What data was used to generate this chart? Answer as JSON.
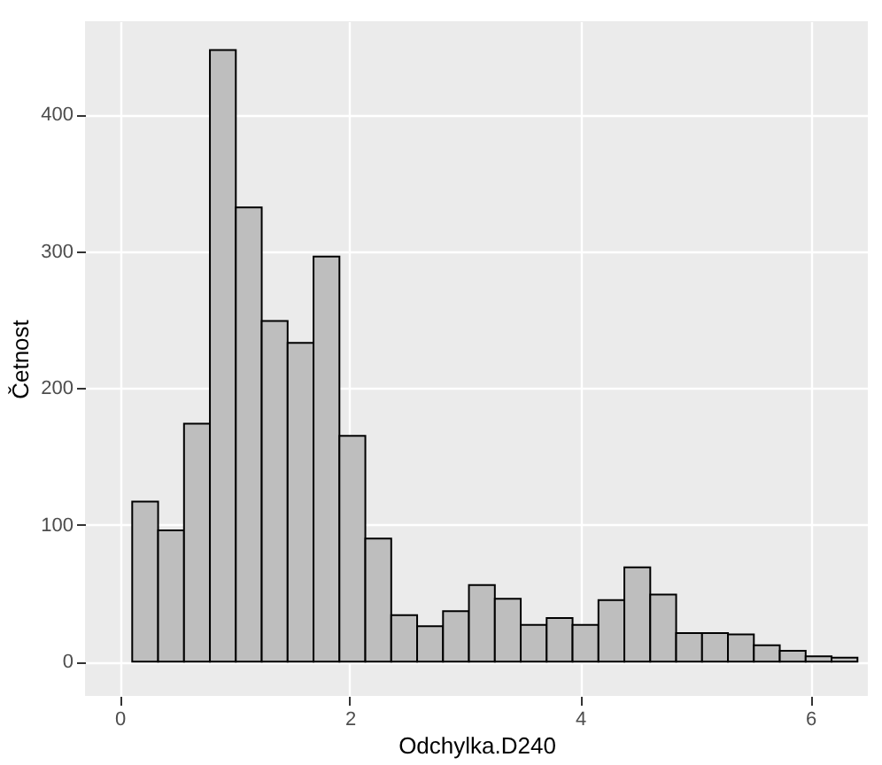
{
  "chart_data": {
    "type": "histogram",
    "xlabel": "Odchylka.D240",
    "ylabel": "Četnost",
    "bins": [
      0.11,
      0.335,
      0.56,
      0.785,
      1.01,
      1.235,
      1.46,
      1.685,
      1.91,
      2.135,
      2.36,
      2.585,
      2.81,
      3.035,
      3.26,
      3.485,
      3.71,
      3.935,
      4.16,
      4.385,
      4.61,
      4.835,
      5.06,
      5.285,
      5.51,
      5.735,
      5.96,
      6.185,
      6.41
    ],
    "values": [
      117,
      96,
      174,
      447,
      332,
      249,
      233,
      296,
      165,
      90,
      34,
      26,
      37,
      56,
      46,
      27,
      32,
      27,
      45,
      69,
      49,
      21,
      21,
      20,
      12,
      8,
      4,
      3
    ],
    "color": "#bebebe",
    "xlim": [
      -0.3,
      6.5
    ],
    "ylim": [
      -25,
      468
    ],
    "xticks": [
      0,
      2,
      4,
      6
    ],
    "yticks": [
      0,
      100,
      200,
      300,
      400
    ],
    "grid": true
  }
}
